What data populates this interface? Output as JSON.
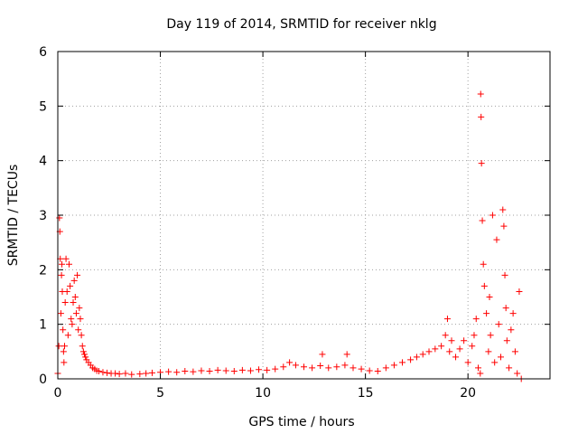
{
  "chart_data": {
    "type": "scatter",
    "title": "Day 119 of 2014, SRMTID for receiver nklg",
    "xlabel": "GPS time / hours",
    "ylabel": "SRMTID / TECUs",
    "xlim": [
      0,
      24
    ],
    "ylim": [
      0,
      6
    ],
    "xticks": [
      0,
      5,
      10,
      15,
      20
    ],
    "yticks": [
      0,
      1,
      2,
      3,
      4,
      5,
      6
    ],
    "grid": true,
    "marker": "+",
    "series": [
      {
        "name": "SRMTID",
        "color": "#ff0000",
        "x": [
          0.0,
          0.05,
          0.08,
          0.1,
          0.12,
          0.15,
          0.18,
          0.2,
          0.22,
          0.25,
          0.28,
          0.3,
          0.33,
          0.36,
          0.4,
          0.45,
          0.5,
          0.55,
          0.6,
          0.65,
          0.7,
          0.75,
          0.8,
          0.85,
          0.9,
          0.95,
          1.0,
          1.05,
          1.1,
          1.15,
          1.2,
          1.25,
          1.3,
          1.35,
          1.4,
          1.5,
          1.6,
          1.7,
          1.8,
          1.9,
          2.0,
          2.2,
          2.4,
          2.6,
          2.8,
          3.0,
          3.3,
          3.6,
          4.0,
          4.3,
          4.6,
          5.0,
          5.4,
          5.8,
          6.2,
          6.6,
          7.0,
          7.4,
          7.8,
          8.2,
          8.6,
          9.0,
          9.4,
          9.8,
          10.2,
          10.6,
          11.0,
          11.3,
          11.6,
          12.0,
          12.4,
          12.8,
          12.9,
          13.2,
          13.6,
          14.0,
          14.1,
          14.4,
          14.8,
          15.2,
          15.6,
          16.0,
          16.4,
          16.8,
          17.2,
          17.5,
          17.8,
          18.1,
          18.4,
          18.7,
          18.9,
          19.0,
          19.1,
          19.2,
          19.4,
          19.6,
          19.8,
          20.0,
          20.2,
          20.3,
          20.4,
          20.5,
          20.6,
          20.62,
          20.64,
          20.66,
          20.7,
          20.75,
          20.8,
          20.9,
          21.0,
          21.05,
          21.1,
          21.2,
          21.3,
          21.4,
          21.5,
          21.6,
          21.7,
          21.75,
          21.8,
          21.85,
          21.9,
          22.0,
          22.1,
          22.2,
          22.3,
          22.4,
          22.5,
          22.6
        ],
        "y": [
          0.1,
          0.6,
          2.95,
          2.7,
          2.2,
          1.2,
          1.9,
          2.1,
          1.6,
          0.9,
          0.5,
          0.3,
          0.6,
          1.4,
          2.2,
          1.6,
          0.8,
          2.1,
          1.7,
          1.1,
          1.0,
          1.4,
          1.8,
          1.5,
          1.2,
          1.9,
          0.9,
          1.3,
          1.1,
          0.8,
          0.6,
          0.5,
          0.45,
          0.4,
          0.35,
          0.3,
          0.25,
          0.2,
          0.18,
          0.15,
          0.14,
          0.12,
          0.11,
          0.1,
          0.1,
          0.09,
          0.1,
          0.08,
          0.09,
          0.1,
          0.11,
          0.12,
          0.13,
          0.12,
          0.14,
          0.13,
          0.15,
          0.14,
          0.16,
          0.15,
          0.14,
          0.16,
          0.15,
          0.17,
          0.16,
          0.18,
          0.22,
          0.3,
          0.25,
          0.22,
          0.2,
          0.24,
          0.45,
          0.2,
          0.22,
          0.25,
          0.45,
          0.2,
          0.18,
          0.15,
          0.14,
          0.2,
          0.25,
          0.3,
          0.35,
          0.4,
          0.45,
          0.5,
          0.55,
          0.6,
          0.8,
          1.1,
          0.5,
          0.7,
          0.4,
          0.55,
          0.7,
          0.3,
          0.6,
          0.8,
          1.1,
          0.2,
          0.1,
          5.22,
          4.8,
          3.95,
          2.9,
          2.1,
          1.7,
          1.2,
          0.5,
          1.5,
          0.8,
          3.0,
          0.3,
          2.55,
          1.0,
          0.4,
          3.1,
          2.8,
          1.9,
          1.3,
          0.7,
          0.2,
          0.9,
          1.2,
          0.5,
          0.1,
          1.6,
          0.0
        ]
      }
    ]
  }
}
